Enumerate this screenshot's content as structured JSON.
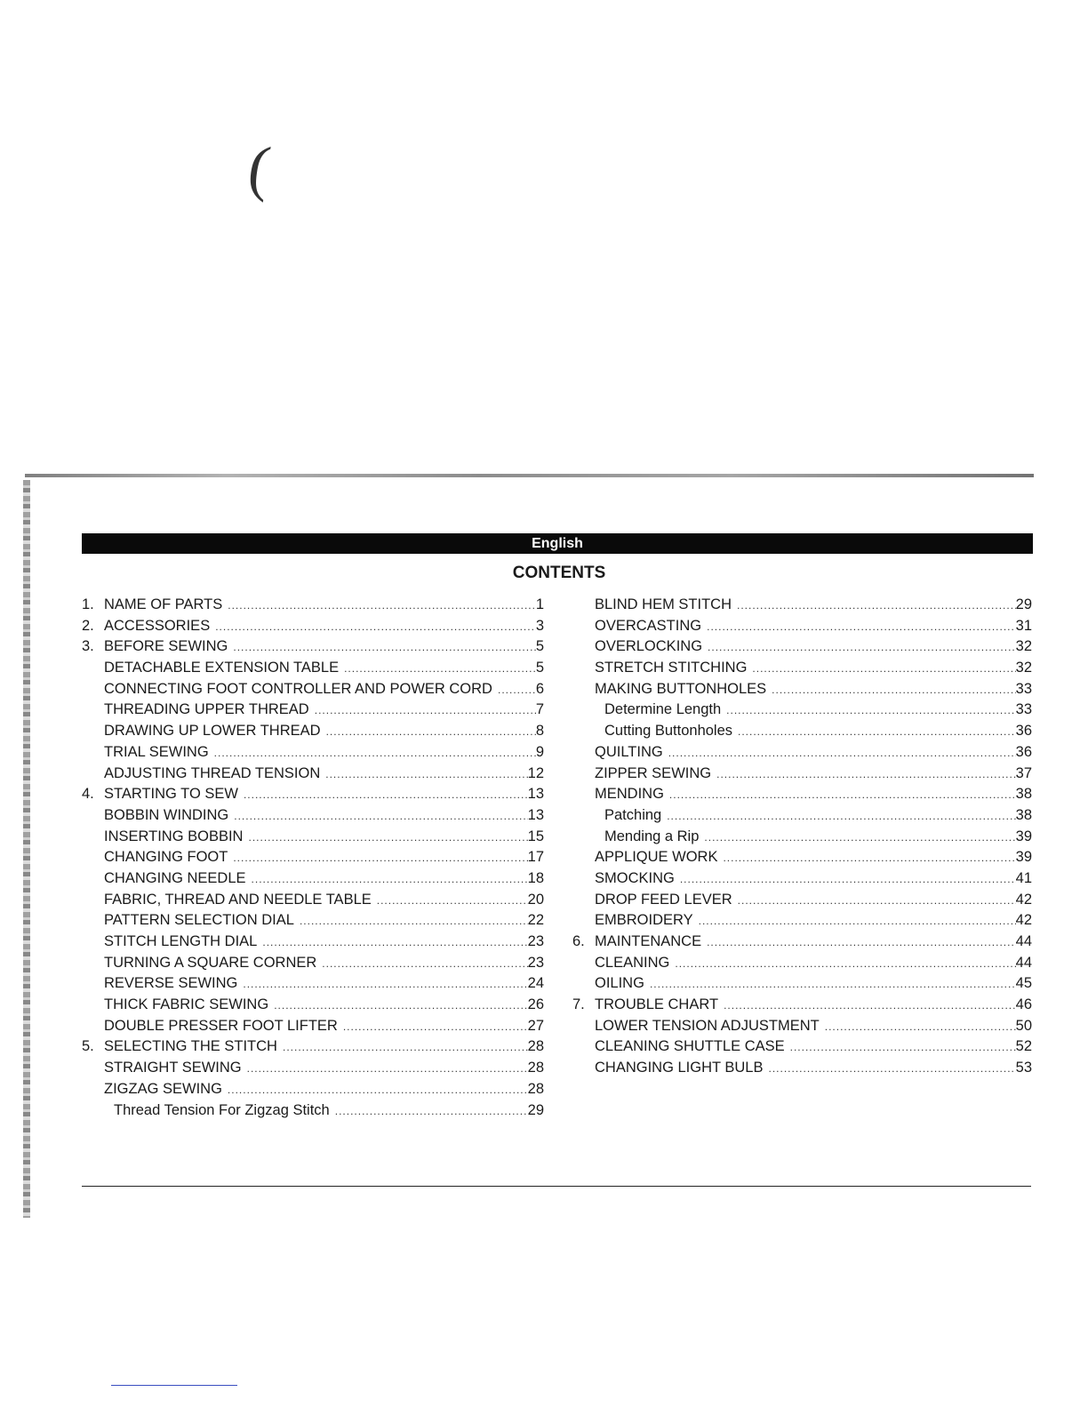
{
  "header": {
    "language": "English"
  },
  "title": "CONTENTS",
  "left_column": [
    {
      "num": "1.",
      "title": "NAME OF PARTS",
      "page": "1",
      "level": 1
    },
    {
      "num": "2.",
      "title": "ACCESSORIES",
      "page": "3",
      "level": 1
    },
    {
      "num": "3.",
      "title": "BEFORE SEWING",
      "page": "5",
      "level": 1
    },
    {
      "num": "",
      "title": "DETACHABLE EXTENSION TABLE",
      "page": "5",
      "level": 1
    },
    {
      "num": "",
      "title": "CONNECTING FOOT CONTROLLER AND POWER CORD",
      "page": "6",
      "level": 1
    },
    {
      "num": "",
      "title": "THREADING UPPER THREAD",
      "page": "7",
      "level": 1
    },
    {
      "num": "",
      "title": "DRAWING UP LOWER THREAD",
      "page": "8",
      "level": 1
    },
    {
      "num": "",
      "title": "TRIAL SEWING",
      "page": "9",
      "level": 1
    },
    {
      "num": "",
      "title": "ADJUSTING THREAD TENSION",
      "page": "12",
      "level": 1
    },
    {
      "num": "4.",
      "title": "STARTING TO SEW",
      "page": "13",
      "level": 1
    },
    {
      "num": "",
      "title": "BOBBIN WINDING",
      "page": "13",
      "level": 1
    },
    {
      "num": "",
      "title": "INSERTING BOBBIN",
      "page": "15",
      "level": 1
    },
    {
      "num": "",
      "title": "CHANGING FOOT",
      "page": "17",
      "level": 1
    },
    {
      "num": "",
      "title": "CHANGING NEEDLE",
      "page": "18",
      "level": 1
    },
    {
      "num": "",
      "title": "FABRIC, THREAD AND NEEDLE TABLE",
      "page": "20",
      "level": 1
    },
    {
      "num": "",
      "title": "PATTERN SELECTION DIAL",
      "page": "22",
      "level": 1
    },
    {
      "num": "",
      "title": "STITCH LENGTH DIAL",
      "page": "23",
      "level": 1
    },
    {
      "num": "",
      "title": "TURNING A SQUARE CORNER",
      "page": "23",
      "level": 1
    },
    {
      "num": "",
      "title": "REVERSE SEWING",
      "page": "24",
      "level": 1
    },
    {
      "num": "",
      "title": "THICK FABRIC SEWING",
      "page": "26",
      "level": 1
    },
    {
      "num": "",
      "title": "DOUBLE PRESSER FOOT LIFTER",
      "page": "27",
      "level": 1
    },
    {
      "num": "5.",
      "title": "SELECTING THE STITCH",
      "page": "28",
      "level": 1
    },
    {
      "num": "",
      "title": "STRAIGHT SEWING",
      "page": "28",
      "level": 1
    },
    {
      "num": "",
      "title": "ZIGZAG SEWING",
      "page": "28",
      "level": 1
    },
    {
      "num": "",
      "title": "Thread Tension For Zigzag Stitch",
      "page": "29",
      "level": 2
    }
  ],
  "right_column": [
    {
      "num": "",
      "title": "BLIND HEM STITCH",
      "page": "29",
      "level": 1
    },
    {
      "num": "",
      "title": "OVERCASTING",
      "page": "31",
      "level": 1
    },
    {
      "num": "",
      "title": "OVERLOCKING",
      "page": "32",
      "level": 1
    },
    {
      "num": "",
      "title": "STRETCH STITCHING",
      "page": "32",
      "level": 1
    },
    {
      "num": "",
      "title": "MAKING BUTTONHOLES",
      "page": "33",
      "level": 1
    },
    {
      "num": "",
      "title": "Determine Length",
      "page": "33",
      "level": 2
    },
    {
      "num": "",
      "title": "Cutting Buttonholes",
      "page": "36",
      "level": 2
    },
    {
      "num": "",
      "title": "QUILTING",
      "page": "36",
      "level": 1
    },
    {
      "num": "",
      "title": "ZIPPER SEWING",
      "page": "37",
      "level": 1
    },
    {
      "num": "",
      "title": "MENDING",
      "page": "38",
      "level": 1
    },
    {
      "num": "",
      "title": "Patching",
      "page": "38",
      "level": 2
    },
    {
      "num": "",
      "title": "Mending a Rip",
      "page": "39",
      "level": 2
    },
    {
      "num": "",
      "title": "APPLIQUE WORK",
      "page": "39",
      "level": 1
    },
    {
      "num": "",
      "title": "SMOCKING",
      "page": "41",
      "level": 1
    },
    {
      "num": "",
      "title": "DROP FEED LEVER",
      "page": "42",
      "level": 1
    },
    {
      "num": "",
      "title": "EMBROIDERY",
      "page": "42",
      "level": 1
    },
    {
      "num": "6.",
      "title": "MAINTENANCE",
      "page": "44",
      "level": 1
    },
    {
      "num": "",
      "title": "CLEANING",
      "page": "44",
      "level": 1
    },
    {
      "num": "",
      "title": "OILING",
      "page": "45",
      "level": 1
    },
    {
      "num": "7.",
      "title": "TROUBLE CHART",
      "page": "46",
      "level": 1
    },
    {
      "num": "",
      "title": "LOWER TENSION ADJUSTMENT",
      "page": "50",
      "level": 1
    },
    {
      "num": "",
      "title": "CLEANING SHUTTLE CASE",
      "page": "52",
      "level": 1
    },
    {
      "num": "",
      "title": "CHANGING LIGHT BULB",
      "page": "53",
      "level": 1
    }
  ]
}
